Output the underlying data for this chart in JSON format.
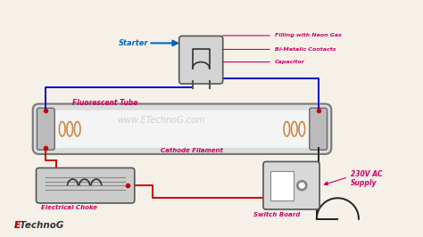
{
  "bg_color": "#f5f0e8",
  "wire_blue": "#0000cc",
  "wire_red": "#cc0000",
  "wire_black": "#222222",
  "label_color_pink": "#cc0066",
  "label_color_blue": "#0066cc",
  "watermark": "www.ETechnoG.com",
  "brand": "ETechnoG",
  "labels": {
    "starter": "Starter",
    "fluorescent_tube": "Fluorescent Tube",
    "cathode_filament": "Cathode Filament",
    "electrical_choke": "Electrical Choke",
    "switch_board": "Switch Board",
    "supply": "230V AC\nSupply",
    "filling": "Filling with Neon Gas",
    "bimetallic": "Bi-Metalic Contacts",
    "capacitor": "Capacitor"
  }
}
